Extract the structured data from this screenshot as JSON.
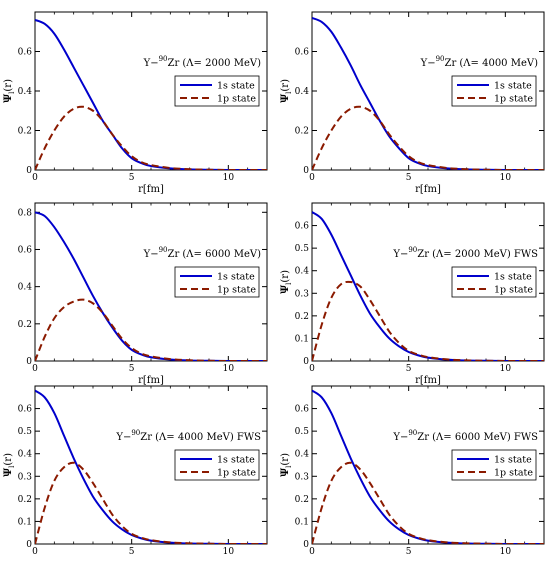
{
  "chart_data": [
    {
      "type": "line",
      "title": "Y−",
      "title_sup": "90",
      "title_rest": "Zr (Λ= 2000 MeV)",
      "xlabel": "r[fm]",
      "ylabel": "Ψ",
      "ylabel_sub": "l",
      "ylabel_rest": "(r)",
      "xlim": [
        0,
        12
      ],
      "ylim": [
        0,
        0.8
      ],
      "xticks": [
        "0",
        "5",
        "10"
      ],
      "xtick_values": [
        0,
        5,
        10
      ],
      "yticks": [
        "0",
        "0.2",
        "0.4",
        "0.6"
      ],
      "ytick_values": [
        0,
        0.2,
        0.4,
        0.6
      ],
      "legend_placement": "upper-right",
      "series": [
        {
          "name": "1s state",
          "color": "#0000cc",
          "style": "solid",
          "x": [
            0,
            0.5,
            1,
            1.5,
            2,
            2.5,
            3,
            3.5,
            4,
            4.5,
            5,
            5.5,
            6,
            7,
            8,
            9,
            10,
            11,
            12
          ],
          "y": [
            0.76,
            0.74,
            0.69,
            0.61,
            0.52,
            0.43,
            0.34,
            0.25,
            0.18,
            0.11,
            0.06,
            0.035,
            0.02,
            0.008,
            0.003,
            0.001,
            0,
            0,
            0
          ]
        },
        {
          "name": "1p state",
          "color": "#8b1a00",
          "style": "dashed",
          "x": [
            0,
            0.5,
            1,
            1.5,
            2,
            2.5,
            3,
            3.5,
            4,
            4.5,
            5,
            5.5,
            6,
            7,
            8,
            9,
            10,
            11,
            12
          ],
          "y": [
            0,
            0.11,
            0.2,
            0.27,
            0.31,
            0.32,
            0.3,
            0.25,
            0.18,
            0.12,
            0.07,
            0.04,
            0.025,
            0.01,
            0.004,
            0.001,
            0,
            0,
            0
          ]
        }
      ]
    },
    {
      "type": "line",
      "title": "Y−",
      "title_sup": "90",
      "title_rest": "Zr (Λ= 4000 MeV)",
      "xlabel": "r[fm]",
      "ylabel": "Ψ",
      "ylabel_sub": "l",
      "ylabel_rest": "(r)",
      "xlim": [
        0,
        12
      ],
      "ylim": [
        0,
        0.8
      ],
      "xticks": [
        "0",
        "5",
        "10"
      ],
      "xtick_values": [
        0,
        5,
        10
      ],
      "yticks": [
        "0",
        "0.2",
        "0.4",
        "0.6"
      ],
      "ytick_values": [
        0,
        0.2,
        0.4,
        0.6
      ],
      "legend_placement": "upper-right",
      "series": [
        {
          "name": "1s state",
          "color": "#0000cc",
          "style": "solid",
          "x": [
            0,
            0.5,
            1,
            1.5,
            2,
            2.5,
            3,
            3.5,
            4,
            4.5,
            5,
            5.5,
            6,
            7,
            8,
            9,
            10,
            11,
            12
          ],
          "y": [
            0.77,
            0.75,
            0.7,
            0.62,
            0.53,
            0.43,
            0.34,
            0.25,
            0.17,
            0.11,
            0.06,
            0.035,
            0.02,
            0.008,
            0.003,
            0.001,
            0,
            0,
            0
          ]
        },
        {
          "name": "1p state",
          "color": "#8b1a00",
          "style": "dashed",
          "x": [
            0,
            0.5,
            1,
            1.5,
            2,
            2.5,
            3,
            3.5,
            4,
            4.5,
            5,
            5.5,
            6,
            7,
            8,
            9,
            10,
            11,
            12
          ],
          "y": [
            0,
            0.11,
            0.2,
            0.27,
            0.31,
            0.32,
            0.3,
            0.25,
            0.18,
            0.12,
            0.07,
            0.04,
            0.025,
            0.01,
            0.004,
            0.001,
            0,
            0,
            0
          ]
        }
      ]
    },
    {
      "type": "line",
      "title": "Y−",
      "title_sup": "90",
      "title_rest": "Zr (Λ= 6000 MeV)",
      "xlabel": "r[fm]",
      "ylabel": "",
      "ylabel_sub": "",
      "ylabel_rest": "",
      "xlim": [
        0,
        12
      ],
      "ylim": [
        0,
        0.85
      ],
      "xticks": [
        "0",
        "5",
        "10"
      ],
      "xtick_values": [
        0,
        5,
        10
      ],
      "yticks": [
        "0",
        "0.2",
        "0.4",
        "0.6",
        "0.8"
      ],
      "ytick_values": [
        0,
        0.2,
        0.4,
        0.6,
        0.8
      ],
      "legend_placement": "upper-right",
      "series": [
        {
          "name": "1s state",
          "color": "#0000cc",
          "style": "solid",
          "x": [
            0,
            0.5,
            1,
            1.5,
            2,
            2.5,
            3,
            3.5,
            4,
            4.5,
            5,
            5.5,
            6,
            7,
            8,
            9,
            10,
            11,
            12
          ],
          "y": [
            0.8,
            0.78,
            0.72,
            0.64,
            0.55,
            0.45,
            0.35,
            0.26,
            0.18,
            0.11,
            0.06,
            0.035,
            0.02,
            0.008,
            0.003,
            0.001,
            0,
            0,
            0
          ]
        },
        {
          "name": "1p state",
          "color": "#8b1a00",
          "style": "dashed",
          "x": [
            0,
            0.5,
            1,
            1.5,
            2,
            2.5,
            3,
            3.5,
            4,
            4.5,
            5,
            5.5,
            6,
            7,
            8,
            9,
            10,
            11,
            12
          ],
          "y": [
            0,
            0.13,
            0.23,
            0.29,
            0.32,
            0.33,
            0.31,
            0.26,
            0.19,
            0.12,
            0.07,
            0.04,
            0.025,
            0.01,
            0.004,
            0.001,
            0,
            0,
            0
          ]
        }
      ]
    },
    {
      "type": "line",
      "title": "Y−",
      "title_sup": "90",
      "title_rest": "Zr (Λ= 2000 MeV) FWS",
      "xlabel": "r[fm]",
      "ylabel": "Ψ",
      "ylabel_sub": "l",
      "ylabel_rest": "(r)",
      "xlim": [
        0,
        12
      ],
      "ylim": [
        0,
        0.7
      ],
      "xticks": [
        "0",
        "5",
        "10"
      ],
      "xtick_values": [
        0,
        5,
        10
      ],
      "yticks": [
        "0",
        "0.1",
        "0.2",
        "0.3",
        "0.4",
        "0.5",
        "0.6"
      ],
      "ytick_values": [
        0,
        0.1,
        0.2,
        0.3,
        0.4,
        0.5,
        0.6
      ],
      "legend_placement": "upper-right",
      "series": [
        {
          "name": "1s state",
          "color": "#0000cc",
          "style": "solid",
          "x": [
            0,
            0.5,
            1,
            1.5,
            2,
            2.5,
            3,
            3.5,
            4,
            4.5,
            5,
            5.5,
            6,
            7,
            8,
            9,
            10,
            11,
            12
          ],
          "y": [
            0.66,
            0.63,
            0.56,
            0.47,
            0.38,
            0.29,
            0.21,
            0.15,
            0.1,
            0.065,
            0.04,
            0.025,
            0.015,
            0.006,
            0.002,
            0.001,
            0,
            0,
            0
          ]
        },
        {
          "name": "1p state",
          "color": "#8b1a00",
          "style": "dashed",
          "x": [
            0,
            0.5,
            1,
            1.5,
            2,
            2.5,
            3,
            3.5,
            4,
            4.5,
            5,
            5.5,
            6,
            7,
            8,
            9,
            10,
            11,
            12
          ],
          "y": [
            0,
            0.16,
            0.28,
            0.34,
            0.35,
            0.33,
            0.27,
            0.2,
            0.13,
            0.08,
            0.045,
            0.028,
            0.017,
            0.007,
            0.003,
            0.001,
            0,
            0,
            0
          ]
        }
      ]
    },
    {
      "type": "line",
      "title": "Y−",
      "title_sup": "90",
      "title_rest": "Zr (Λ= 4000 MeV) FWS",
      "xlabel": "",
      "ylabel": "Ψ",
      "ylabel_sub": "l",
      "ylabel_rest": "(r)",
      "xlim": [
        0,
        12
      ],
      "ylim": [
        0,
        0.7
      ],
      "xticks": [
        "0",
        "5",
        "10"
      ],
      "xtick_values": [
        0,
        5,
        10
      ],
      "yticks": [
        "0",
        "0.1",
        "0.2",
        "0.3",
        "0.4",
        "0.5",
        "0.6"
      ],
      "ytick_values": [
        0,
        0.1,
        0.2,
        0.3,
        0.4,
        0.5,
        0.6
      ],
      "legend_placement": "upper-right",
      "series": [
        {
          "name": "1s state",
          "color": "#0000cc",
          "style": "solid",
          "x": [
            0,
            0.5,
            1,
            1.5,
            2,
            2.5,
            3,
            3.5,
            4,
            4.5,
            5,
            5.5,
            6,
            7,
            8,
            9,
            10,
            11,
            12
          ],
          "y": [
            0.68,
            0.65,
            0.58,
            0.48,
            0.38,
            0.29,
            0.21,
            0.15,
            0.1,
            0.065,
            0.04,
            0.025,
            0.015,
            0.006,
            0.002,
            0.001,
            0,
            0,
            0
          ]
        },
        {
          "name": "1p state",
          "color": "#8b1a00",
          "style": "dashed",
          "x": [
            0,
            0.5,
            1,
            1.5,
            2,
            2.5,
            3,
            3.5,
            4,
            4.5,
            5,
            5.5,
            6,
            7,
            8,
            9,
            10,
            11,
            12
          ],
          "y": [
            0,
            0.16,
            0.28,
            0.34,
            0.36,
            0.33,
            0.27,
            0.2,
            0.13,
            0.08,
            0.045,
            0.028,
            0.017,
            0.007,
            0.003,
            0.001,
            0,
            0,
            0
          ]
        }
      ]
    },
    {
      "type": "line",
      "title": "Y−",
      "title_sup": "90",
      "title_rest": "Zr (Λ= 6000 MeV) FWS",
      "xlabel": "",
      "ylabel": "Ψ",
      "ylabel_sub": "l",
      "ylabel_rest": "(r)",
      "xlim": [
        0,
        12
      ],
      "ylim": [
        0,
        0.7
      ],
      "xticks": [
        "0",
        "5",
        "10"
      ],
      "xtick_values": [
        0,
        5,
        10
      ],
      "yticks": [
        "0",
        "0.1",
        "0.2",
        "0.3",
        "0.4",
        "0.5",
        "0.6"
      ],
      "ytick_values": [
        0,
        0.1,
        0.2,
        0.3,
        0.4,
        0.5,
        0.6
      ],
      "legend_placement": "upper-right",
      "series": [
        {
          "name": "1s state",
          "color": "#0000cc",
          "style": "solid",
          "x": [
            0,
            0.5,
            1,
            1.5,
            2,
            2.5,
            3,
            3.5,
            4,
            4.5,
            5,
            5.5,
            6,
            7,
            8,
            9,
            10,
            11,
            12
          ],
          "y": [
            0.68,
            0.65,
            0.58,
            0.48,
            0.38,
            0.29,
            0.21,
            0.15,
            0.1,
            0.065,
            0.04,
            0.025,
            0.015,
            0.006,
            0.002,
            0.001,
            0,
            0,
            0
          ]
        },
        {
          "name": "1p state",
          "color": "#8b1a00",
          "style": "dashed",
          "x": [
            0,
            0.5,
            1,
            1.5,
            2,
            2.5,
            3,
            3.5,
            4,
            4.5,
            5,
            5.5,
            6,
            7,
            8,
            9,
            10,
            11,
            12
          ],
          "y": [
            0,
            0.16,
            0.28,
            0.34,
            0.36,
            0.33,
            0.27,
            0.2,
            0.13,
            0.08,
            0.045,
            0.028,
            0.017,
            0.007,
            0.003,
            0.001,
            0,
            0,
            0
          ]
        }
      ]
    }
  ]
}
